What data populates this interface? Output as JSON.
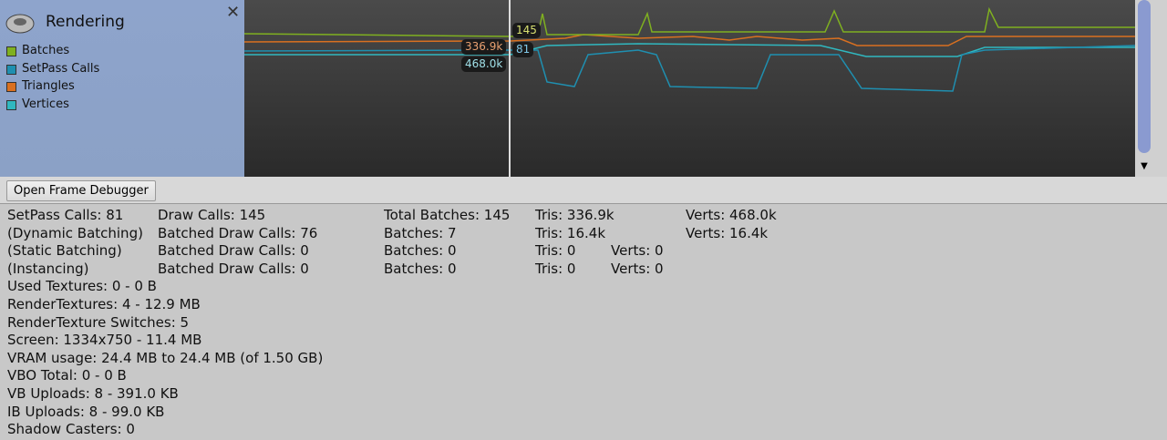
{
  "panel": {
    "title": "Rendering",
    "legend": [
      {
        "label": "Batches",
        "color": "#7fb020"
      },
      {
        "label": "SetPass Calls",
        "color": "#1f8fb0"
      },
      {
        "label": "Triangles",
        "color": "#d97020"
      },
      {
        "label": "Vertices",
        "color": "#30b8c0"
      }
    ]
  },
  "tooltips": {
    "triangles": "336.9k",
    "batches": "145",
    "setpass": "81",
    "vertices": "468.0k"
  },
  "toolbar": {
    "button": "Open Frame Debugger"
  },
  "stats": {
    "rows": [
      [
        "SetPass Calls: 81",
        "Draw Calls: 145",
        "Total Batches: 145",
        "Tris: 336.9k",
        "Verts: 468.0k"
      ],
      [
        "(Dynamic Batching)",
        "Batched Draw Calls: 76",
        "Batches: 7",
        "Tris: 16.4k",
        "Verts: 16.4k"
      ],
      [
        "(Static Batching)",
        "Batched Draw Calls: 0",
        "Batches: 0",
        "Tris: 0",
        "Verts: 0"
      ],
      [
        "(Instancing)",
        "Batched Draw Calls: 0",
        "Batches: 0",
        "Tris: 0",
        "Verts: 0"
      ]
    ],
    "lines": [
      "Used Textures: 0 - 0 B",
      "RenderTextures: 4 - 12.9 MB",
      "RenderTexture Switches: 5",
      "Screen: 1334x750 - 11.4 MB",
      "VRAM usage: 24.4 MB to 24.4 MB (of 1.50 GB)",
      "VBO Total: 0 - 0 B",
      "VB Uploads: 8 - 391.0 KB",
      "IB Uploads: 8 - 99.0 KB",
      "Shadow Casters: 0"
    ]
  }
}
